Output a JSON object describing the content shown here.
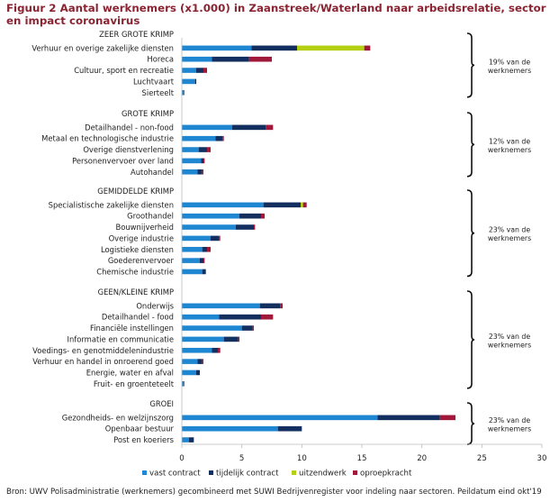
{
  "chart_data": {
    "type": "bar",
    "orientation": "horizontal",
    "stacked": true,
    "title": "Figuur 2 Aantal werknemers (x1.000) in Zaanstreek/Waterland naar arbeidsrelatie, sector en impact coronavirus",
    "source": "Bron: UWV Polisadministratie (werknemers) gecombineerd met SUWI Bedrijvenregister voor indeling naar sectoren. Peildatum eind okt'19",
    "xlim": [
      0,
      30
    ],
    "xticks": [
      0,
      5,
      10,
      15,
      20,
      25,
      30
    ],
    "grid": false,
    "legend_position": "bottom",
    "series": [
      {
        "name": "vast contract",
        "color": "#1f86d1"
      },
      {
        "name": "tijdelijk contract",
        "color": "#132f60"
      },
      {
        "name": "uitzendwerk",
        "color": "#b5cf13"
      },
      {
        "name": "oproepkracht",
        "color": "#a0183a"
      }
    ],
    "groups": [
      {
        "name": "ZEER GROTE KRIMP",
        "share_label": [
          "19% van de",
          "werknemers"
        ],
        "categories": [
          {
            "label": "Verhuur en overige zakelijke diensten",
            "values": [
              5.8,
              3.8,
              5.6,
              0.5
            ]
          },
          {
            "label": "Horeca",
            "values": [
              2.5,
              3.1,
              0,
              1.9
            ]
          },
          {
            "label": "Cultuur, sport en recreatie",
            "values": [
              1.2,
              0.6,
              0,
              0.3
            ]
          },
          {
            "label": "Luchtvaart",
            "values": [
              1.1,
              0.1,
              0,
              0
            ]
          },
          {
            "label": "Sierteelt",
            "values": [
              0.15,
              0.05,
              0,
              0
            ]
          }
        ]
      },
      {
        "name": "GROTE KRIMP",
        "share_label": [
          "12% van de",
          "werknemers"
        ],
        "categories": [
          {
            "label": "Detailhandel - non-food",
            "values": [
              4.2,
              2.8,
              0,
              0.6
            ]
          },
          {
            "label": "Metaal en technologische industrie",
            "values": [
              2.8,
              0.6,
              0,
              0.1
            ]
          },
          {
            "label": "Overige dienstverlening",
            "values": [
              1.4,
              0.7,
              0,
              0.3
            ]
          },
          {
            "label": "Personenvervoer over land",
            "values": [
              1.6,
              0.2,
              0,
              0.1
            ]
          },
          {
            "label": "Autohandel",
            "values": [
              1.3,
              0.4,
              0,
              0.1
            ]
          }
        ]
      },
      {
        "name": "GEMIDDELDE KRIMP",
        "share_label": [
          "23% van de",
          "werknemers"
        ],
        "categories": [
          {
            "label": "Specialistische zakelijke diensten",
            "values": [
              6.8,
              3.1,
              0.2,
              0.3
            ]
          },
          {
            "label": "Groothandel",
            "values": [
              4.8,
              1.8,
              0,
              0.3
            ]
          },
          {
            "label": "Bouwnijverheid",
            "values": [
              4.5,
              1.5,
              0,
              0.1
            ]
          },
          {
            "label": "Overige industrie",
            "values": [
              2.4,
              0.7,
              0,
              0.1
            ]
          },
          {
            "label": "Logistieke diensten",
            "values": [
              1.7,
              0.4,
              0,
              0.3
            ]
          },
          {
            "label": "Goederenvervoer",
            "values": [
              1.5,
              0.3,
              0,
              0.1
            ]
          },
          {
            "label": "Chemische industrie",
            "values": [
              1.7,
              0.3,
              0,
              0.0
            ]
          }
        ]
      },
      {
        "name": "GEEN/KLEINE KRIMP",
        "share_label": [
          "23% van de",
          "werknemers"
        ],
        "categories": [
          {
            "label": "Onderwijs",
            "values": [
              6.5,
              1.7,
              0,
              0.2
            ]
          },
          {
            "label": "Detailhandel - food",
            "values": [
              3.1,
              3.5,
              0,
              1.0
            ]
          },
          {
            "label": "Financiële instellingen",
            "values": [
              5.0,
              0.9,
              0,
              0.1
            ]
          },
          {
            "label": "Informatie en communicatie",
            "values": [
              3.5,
              1.2,
              0,
              0.1
            ]
          },
          {
            "label": "Voedings- en genotmiddelenindustrie",
            "values": [
              2.5,
              0.5,
              0,
              0.2
            ]
          },
          {
            "label": "Verhuur en handel in onroerend goed",
            "values": [
              1.3,
              0.4,
              0,
              0.1
            ]
          },
          {
            "label": "Energie, water en afval",
            "values": [
              1.2,
              0.3,
              0,
              0
            ]
          },
          {
            "label": "Fruit- en groenteteelt",
            "values": [
              0.15,
              0.05,
              0,
              0
            ]
          }
        ]
      },
      {
        "name": "GROEI",
        "share_label": [
          "23% van de",
          "werknemers"
        ],
        "categories": [
          {
            "label": "Gezondheids- en welzijnszorg",
            "values": [
              16.3,
              5.2,
              0,
              1.3
            ]
          },
          {
            "label": "Openbaar bestuur",
            "values": [
              8.0,
              2.0,
              0,
              0
            ]
          },
          {
            "label": "Post en koeriers",
            "values": [
              0.6,
              0.4,
              0,
              0
            ]
          }
        ]
      }
    ]
  }
}
